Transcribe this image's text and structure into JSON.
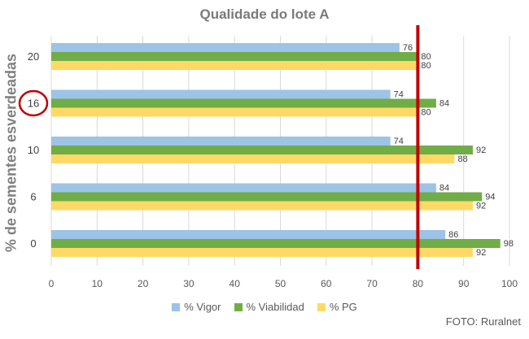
{
  "chart_data": {
    "type": "bar",
    "orientation": "horizontal",
    "title": "Qualidade do lote A",
    "ylabel": "% de sementes esverdeadas",
    "xlabel": "",
    "categories": [
      "20",
      "16",
      "10",
      "6",
      "0"
    ],
    "series": [
      {
        "name": "% Vigor",
        "color": "#9dc3e6",
        "values": [
          76,
          74,
          74,
          84,
          86
        ]
      },
      {
        "name": "% Viabilidad",
        "color": "#70ad47",
        "values": [
          80,
          84,
          92,
          94,
          98
        ]
      },
      {
        "name": "% PG",
        "color": "#ffd966",
        "values": [
          80,
          80,
          88,
          92,
          92
        ]
      }
    ],
    "xlim": [
      0,
      100
    ],
    "xticks": [
      0,
      10,
      20,
      30,
      40,
      50,
      60,
      70,
      80,
      90,
      100
    ],
    "grid": true,
    "legend_position": "bottom",
    "reference_line": {
      "value": 80,
      "color": "#c00000"
    },
    "highlighted_category": "16",
    "highlight_color": "#c00000"
  },
  "credit": "FOTO: Ruralnet"
}
